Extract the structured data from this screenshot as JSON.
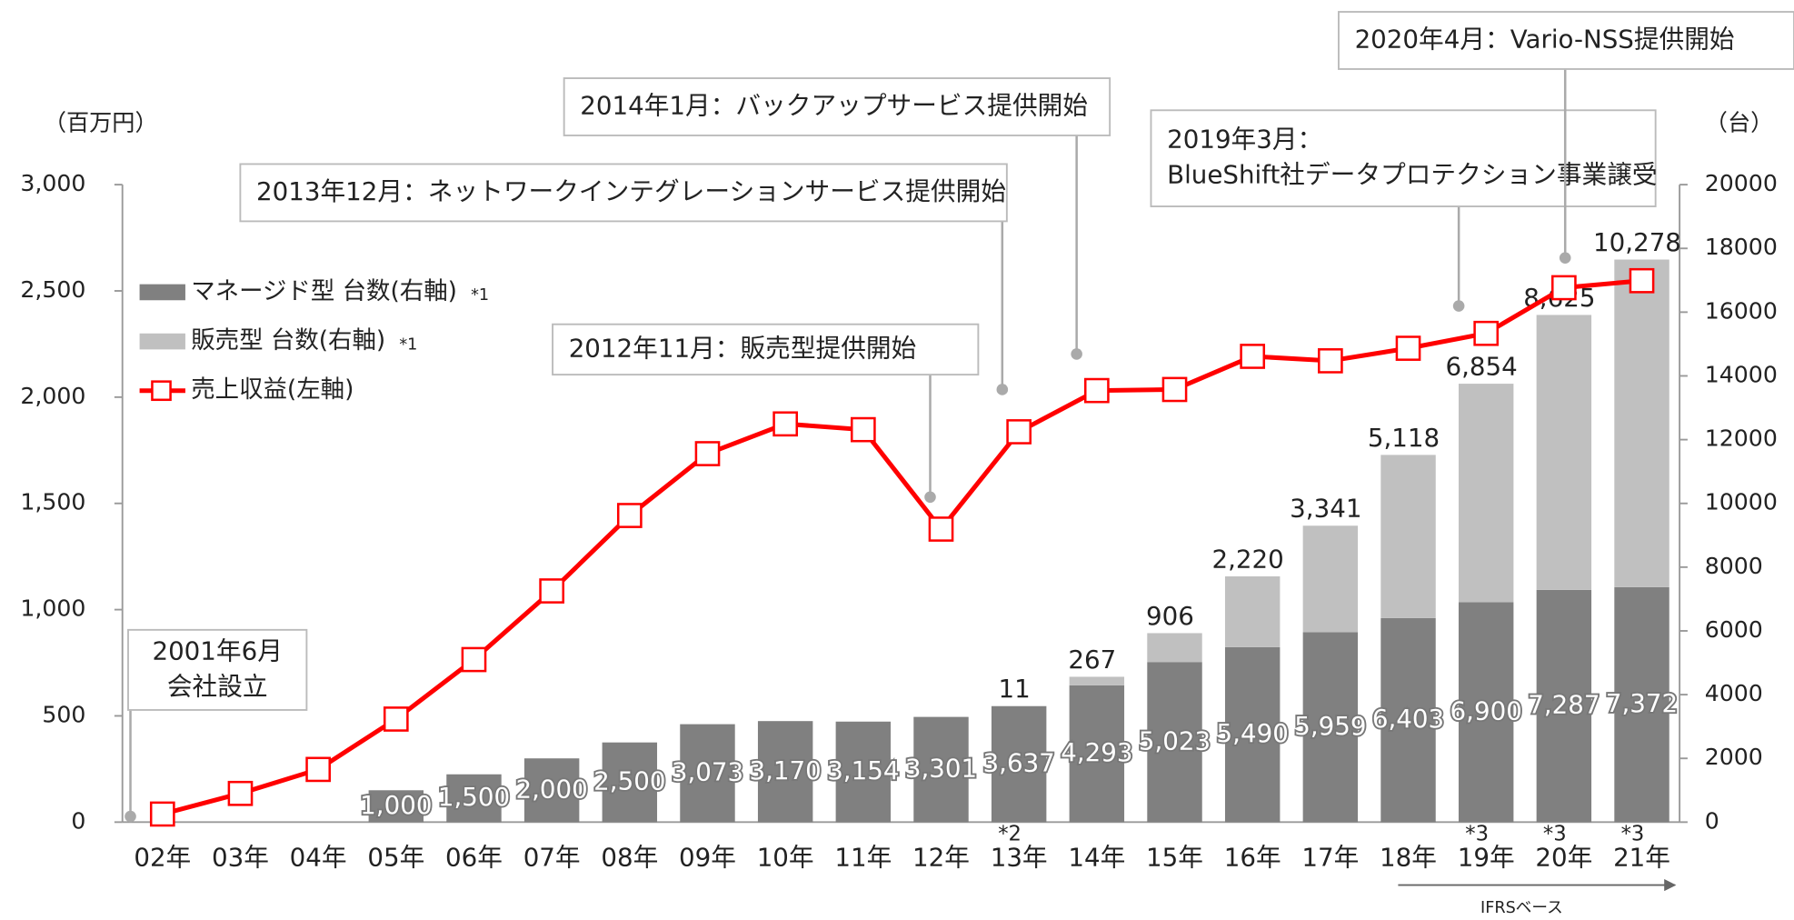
{
  "chart_data": {
    "type": "bar",
    "left_unit": "（百万円）",
    "right_unit": "（台）",
    "categories": [
      "02年",
      "03年",
      "04年",
      "05年",
      "06年",
      "07年",
      "08年",
      "09年",
      "10年",
      "11年",
      "12年",
      "13年",
      "14年",
      "15年",
      "16年",
      "17年",
      "18年",
      "19年",
      "20年",
      "21年"
    ],
    "category_notes": [
      null,
      null,
      null,
      null,
      null,
      null,
      null,
      null,
      null,
      null,
      null,
      "*2",
      null,
      null,
      null,
      null,
      null,
      "*3",
      "*3",
      "*3"
    ],
    "ylim": [
      0,
      3000
    ],
    "yticks": [
      0,
      500,
      {
        "value": 1000,
        "label": "1,000"
      },
      {
        "value": 1500,
        "label": "1,500"
      },
      {
        "value": 2000,
        "label": "2,000"
      },
      {
        "value": 2500,
        "label": "2,500"
      },
      {
        "value": 3000,
        "label": "3,000"
      }
    ],
    "y2lim": [
      0,
      20000
    ],
    "y2ticks": [
      0,
      2000,
      4000,
      6000,
      8000,
      10000,
      12000,
      14000,
      16000,
      18000,
      20000
    ],
    "series": [
      {
        "name": "マネージド型 台数(右軸)",
        "note": "*1",
        "type": "bar",
        "axis": "y2",
        "color": "#808080",
        "values": [
          null,
          null,
          null,
          1000,
          1500,
          2000,
          2500,
          3073,
          3170,
          3154,
          3301,
          3637,
          4293,
          5023,
          5490,
          5959,
          6403,
          6900,
          7287,
          7372
        ],
        "value_labels": [
          null,
          null,
          null,
          "1,000",
          "1,500",
          "2,000",
          "2,500",
          "3,073",
          "3,170",
          "3,154",
          "3,301",
          "3,637",
          "4,293",
          "5,023",
          "5,490",
          "5,959",
          "6,403",
          "6,900",
          "7,287",
          "7,372"
        ]
      },
      {
        "name": "販売型 台数(右軸)",
        "note": "*1",
        "type": "bar",
        "axis": "y2",
        "color": "#c0c0c0",
        "values": [
          null,
          null,
          null,
          null,
          null,
          null,
          null,
          null,
          null,
          null,
          null,
          11,
          267,
          906,
          2220,
          3341,
          5118,
          6854,
          8625,
          10278
        ],
        "value_labels": [
          null,
          null,
          null,
          null,
          null,
          null,
          null,
          null,
          null,
          null,
          null,
          "11",
          "267",
          "906",
          "2,220",
          "3,341",
          "5,118",
          "6,854",
          "8,625",
          "10,278"
        ]
      },
      {
        "name": "売上収益(左軸)",
        "type": "line",
        "axis": "y",
        "color": "#ff0000",
        "values": [
          38,
          135,
          248,
          485,
          765,
          1088,
          1443,
          1734,
          1874,
          1847,
          1379,
          1837,
          2031,
          2036,
          2192,
          2171,
          2230,
          2300,
          2515,
          2548
        ]
      }
    ],
    "annotations": [
      {
        "text": [
          "2001年6月",
          "会社設立"
        ]
      },
      {
        "text": [
          "2012年11月：販売型提供開始"
        ]
      },
      {
        "text": [
          "2013年12月：ネットワークインテグレーションサービス提供開始"
        ]
      },
      {
        "text": [
          "2014年1月：バックアップサービス提供開始"
        ]
      },
      {
        "text": [
          "2019年3月：",
          "BlueShift社データプロテクション事業譲受"
        ]
      },
      {
        "text": [
          "2020年4月：Vario-NSS提供開始"
        ]
      }
    ],
    "range_note": "IFRSベース"
  }
}
